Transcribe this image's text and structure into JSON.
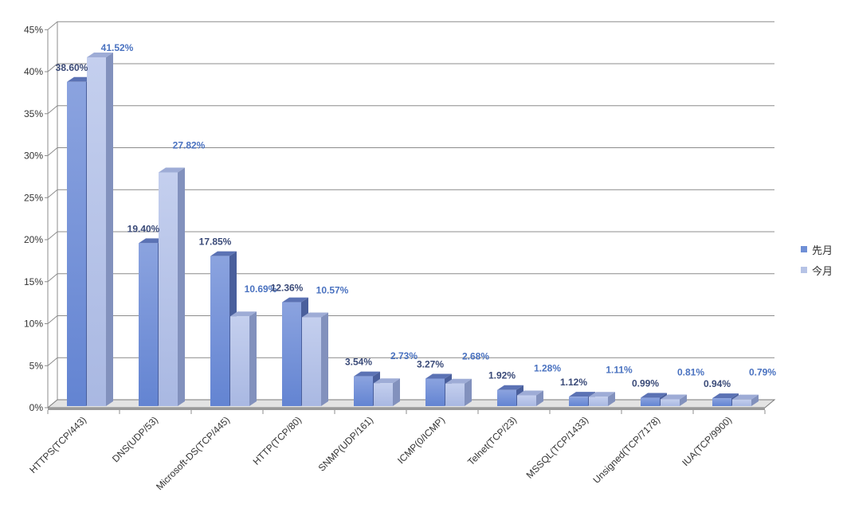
{
  "chart_data": {
    "type": "bar",
    "title": "",
    "xlabel": "",
    "ylabel": "",
    "ylim": [
      0,
      45
    ],
    "yticks": [
      "0%",
      "5%",
      "10%",
      "15%",
      "20%",
      "25%",
      "30%",
      "35%",
      "40%",
      "45%"
    ],
    "grid": true,
    "legend_position": "right",
    "categories": [
      "HTTPS(TCP/443)",
      "DNS(UDP/53)",
      "Microsoft-DS(TCP/445)",
      "HTTP(TCP/80)",
      "SNMP(UDP/161)",
      "ICMP(0/ICMP)",
      "Telnet(TCP/23)",
      "MSSQL(TCP/1433)",
      "Unsigned(TCP/7178)",
      "IUA(TCP/9900)"
    ],
    "series": [
      {
        "name": "先月",
        "values": [
          38.6,
          19.4,
          17.85,
          12.36,
          3.54,
          3.27,
          1.92,
          1.12,
          0.99,
          0.94
        ],
        "labels": [
          "38.60%",
          "19.40%",
          "17.85%",
          "12.36%",
          "3.54%",
          "3.27%",
          "1.92%",
          "1.12%",
          "0.99%",
          "0.94%"
        ],
        "color": "#6f8fd6"
      },
      {
        "name": "今月",
        "values": [
          41.52,
          27.82,
          10.69,
          10.57,
          2.73,
          2.68,
          1.28,
          1.11,
          0.81,
          0.79
        ],
        "labels": [
          "41.52%",
          "27.82%",
          "10.69%",
          "10.57%",
          "2.73%",
          "2.68%",
          "1.28%",
          "1.11%",
          "0.81%",
          "0.79%"
        ],
        "color": "#b6c3e6"
      }
    ]
  }
}
